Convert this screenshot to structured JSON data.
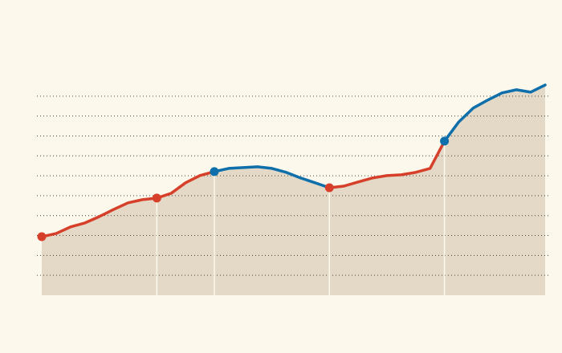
{
  "chart_data": {
    "type": "line",
    "x": [
      0,
      1,
      2,
      3,
      4,
      5,
      6,
      7,
      8,
      9,
      10,
      11,
      12,
      13,
      14,
      15,
      16,
      17,
      18,
      19,
      20,
      21,
      22,
      23,
      24,
      25,
      26,
      27,
      28,
      29,
      30,
      31,
      32,
      33,
      34,
      35
    ],
    "xlim": [
      0,
      35
    ],
    "series": [
      {
        "color": "#d6402a",
        "values": [
          2.94,
          3.1,
          3.43,
          3.63,
          3.95,
          4.31,
          4.64,
          4.8,
          4.88,
          5.12,
          5.65,
          6.01,
          6.21,
          null,
          null,
          null,
          null,
          null,
          null,
          null,
          5.4,
          5.48,
          5.69,
          5.89,
          6.01,
          6.05,
          6.17,
          6.37,
          7.74,
          null,
          null,
          null,
          null,
          null,
          null,
          null
        ]
      },
      {
        "color": "#0f6fab",
        "values": [
          null,
          null,
          null,
          null,
          null,
          null,
          null,
          null,
          null,
          null,
          null,
          null,
          6.21,
          6.37,
          6.41,
          6.45,
          6.37,
          6.17,
          5.89,
          5.65,
          5.4,
          null,
          null,
          null,
          null,
          null,
          null,
          null,
          7.74,
          8.71,
          9.4,
          9.8,
          10.16,
          10.32,
          10.2,
          10.56
        ]
      }
    ],
    "highlight_x": [
      0,
      8,
      12,
      20,
      28
    ],
    "area_color": "#e3d9c6",
    "ylim": [
      0,
      11
    ],
    "yticks": [
      1,
      2,
      3,
      4,
      5,
      6,
      7,
      8,
      9,
      10
    ],
    "grid": true
  }
}
